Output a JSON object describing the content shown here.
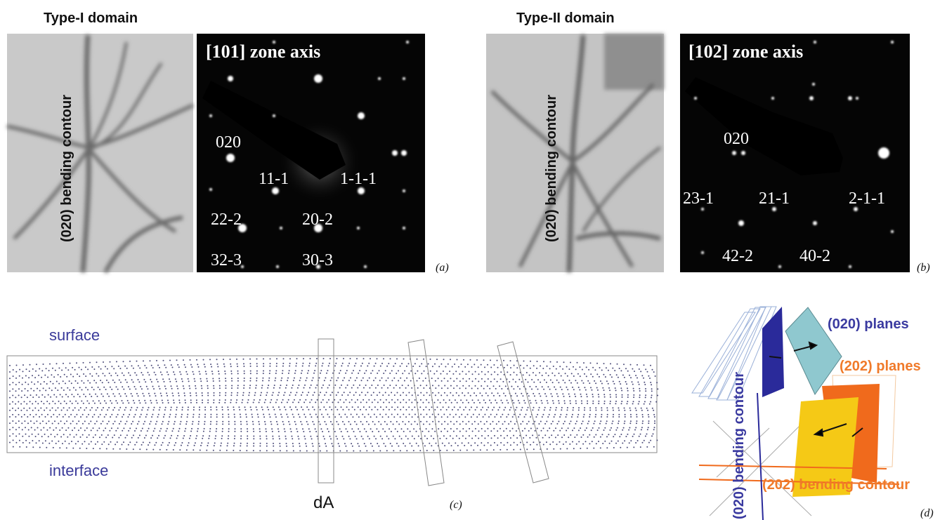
{
  "panel_a": {
    "title": "Type-I domain",
    "image_label": "(020) bending contour",
    "zone_axis": "[101] zone axis",
    "spots": [
      "020",
      "11-1",
      "1-1-1",
      "22-2",
      "20-2",
      "32-3",
      "30-3"
    ],
    "label": "(a)"
  },
  "panel_b": {
    "title": "Type-II domain",
    "image_label": "(020) bending contour",
    "zone_axis": "[102] zone axis",
    "spots": [
      "020",
      "23-1",
      "21-1",
      "2-1-1",
      "42-2",
      "40-2"
    ],
    "label": "(b)"
  },
  "panel_c": {
    "top": "surface",
    "bottom": "interface",
    "marker": "dA",
    "label": "(c)"
  },
  "panel_d": {
    "planes_020": "(020) planes",
    "planes_202": "(202) planes",
    "contour_020": "(020) bending contour",
    "contour_202": "(202) bending contour",
    "label": "(d)"
  }
}
